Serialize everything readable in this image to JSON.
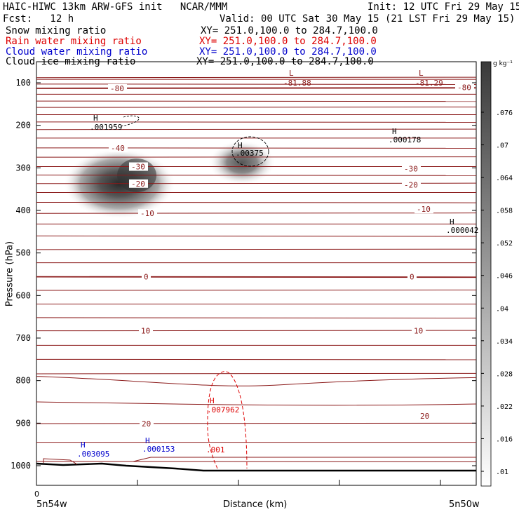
{
  "header": {
    "title": "HAIC-HIWC 13km ARW-GFS init   NCAR/MMM",
    "init": "Init: 12 UTC Fri 29 May 15",
    "fcst": "Fcst:   12 h",
    "valid": "Valid: 00 UTC Sat 30 May 15 (21 LST Fri 29 May 15)",
    "fields": [
      {
        "name": "Snow mixing ratio",
        "xy": "XY= 251.0,100.0 to 284.7,100.0",
        "color": "#000000"
      },
      {
        "name": "Rain water mixing ratio",
        "xy": "XY= 251.0,100.0 to 284.7,100.0",
        "color": "#dd0000"
      },
      {
        "name": "Cloud water mixing ratio",
        "xy": "XY= 251.0,100.0 to 284.7,100.0",
        "color": "#0000cc"
      },
      {
        "name": "Cloud ice mixing ratio",
        "xy": "XY= 251.0,100.0 to 284.7,100.0",
        "color": "#000000"
      }
    ]
  },
  "chart_data": {
    "type": "contour cross-section",
    "ylabel": "Pressure (hPa)",
    "xlabel": "Distance (km)",
    "x_start_label": "5n54w",
    "x_end_label": "5n50w",
    "x_tick_zero": "0",
    "y_ticks": [
      100,
      200,
      300,
      400,
      500,
      600,
      700,
      800,
      900,
      1000
    ],
    "ylim": [
      1020,
      60
    ],
    "colorbar": {
      "unit": "g kg⁻¹",
      "ticks": [
        ".01",
        ".016",
        ".022",
        ".028",
        ".034",
        ".04",
        ".046",
        ".052",
        ".058",
        ".064",
        ".07",
        ".076"
      ]
    },
    "temperature_contours": {
      "levels_labeled": [
        {
          "label": "-80",
          "p": 113
        },
        {
          "label": "-40",
          "p": 253
        },
        {
          "label": "-30",
          "p": 297
        },
        {
          "label": "-20",
          "p": 337
        },
        {
          "label": "-10",
          "p": 407
        },
        {
          "label": "0",
          "p": 556
        },
        {
          "label": "10",
          "p": 683
        },
        {
          "label": "20",
          "p": 901
        }
      ],
      "extra_labels": [
        {
          "text": "-30",
          "p": 302
        },
        {
          "text": "-20",
          "p": 340
        },
        {
          "text": "-10",
          "p": 397
        },
        {
          "text": "0",
          "p": 556
        },
        {
          "text": "10",
          "p": 683
        },
        {
          "text": "20",
          "p": 883
        },
        {
          "text": "-80",
          "p": 111
        }
      ]
    },
    "extrema": [
      {
        "type": "L",
        "value": "-81.88",
        "color": "#8b1a1a"
      },
      {
        "type": "L",
        "value": "-81.29",
        "color": "#8b1a1a"
      },
      {
        "type": "H",
        "value": ".001959",
        "color": "#000000"
      },
      {
        "type": "H",
        "value": ".00375",
        "color": "#000000"
      },
      {
        "type": "H",
        "value": ".000178",
        "color": "#000000"
      },
      {
        "type": "H",
        "value": ".000042",
        "color": "#000000"
      },
      {
        "type": "H",
        "value": ".007962",
        "color": "#dd0000"
      },
      {
        "type": "H",
        "value": ".003095",
        "color": "#0000cc"
      },
      {
        "type": "H",
        "value": ".000153",
        "color": "#0000cc"
      }
    ],
    "rain_contour_label": ".001"
  }
}
